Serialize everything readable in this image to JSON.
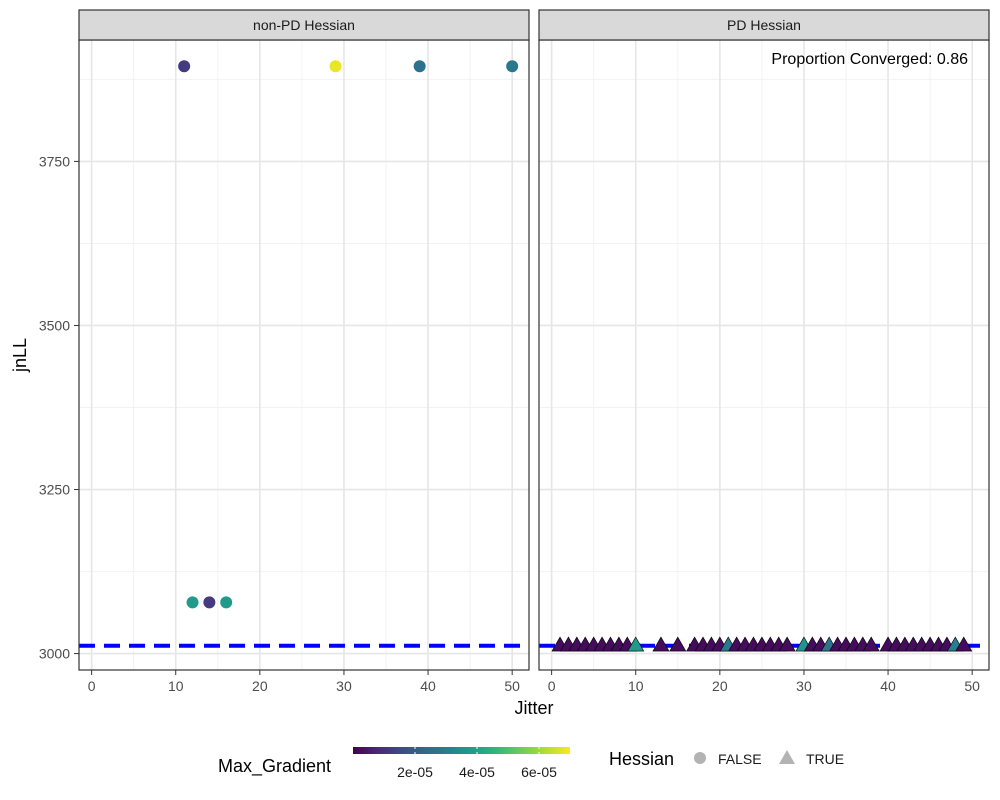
{
  "chart_data": {
    "type": "scatter",
    "xlabel": "Jitter",
    "ylabel": "jnLL",
    "xlim": [
      -1.5,
      52
    ],
    "ylim": [
      2975,
      3935
    ],
    "x_ticks": [
      0,
      10,
      20,
      30,
      40,
      50
    ],
    "y_ticks": [
      3000,
      3250,
      3500,
      3750
    ],
    "grid": true,
    "reference_line": {
      "y": 3012,
      "color": "#0000FF",
      "style": "dashed"
    },
    "panels": [
      {
        "title": "non-PD Hessian",
        "hessian": "FALSE",
        "points": [
          {
            "x": 11,
            "y": 3895,
            "g": 1.2e-05
          },
          {
            "x": 29,
            "y": 3895,
            "g": 6.8e-05
          },
          {
            "x": 39,
            "y": 3895,
            "g": 2.6e-05
          },
          {
            "x": 50,
            "y": 3895,
            "g": 2.8e-05
          },
          {
            "x": 12,
            "y": 3078,
            "g": 3.8e-05
          },
          {
            "x": 14,
            "y": 3078,
            "g": 1.2e-05
          },
          {
            "x": 16,
            "y": 3078,
            "g": 3.8e-05
          }
        ]
      },
      {
        "title": "PD Hessian",
        "hessian": "TRUE",
        "annotation": "Proportion Converged:  0.86",
        "points_y": 3013,
        "points": [
          {
            "x": 1,
            "g": 2e-06
          },
          {
            "x": 2,
            "g": 2e-06
          },
          {
            "x": 3,
            "g": 2e-06
          },
          {
            "x": 4,
            "g": 2e-06
          },
          {
            "x": 5,
            "g": 2e-06
          },
          {
            "x": 6,
            "g": 2e-06
          },
          {
            "x": 7,
            "g": 2e-06
          },
          {
            "x": 8,
            "g": 2e-06
          },
          {
            "x": 9,
            "g": 2e-06
          },
          {
            "x": 10,
            "g": 3.8e-05
          },
          {
            "x": 13,
            "g": 2e-06
          },
          {
            "x": 15,
            "g": 2e-06
          },
          {
            "x": 17,
            "g": 2e-06
          },
          {
            "x": 18,
            "g": 2e-06
          },
          {
            "x": 19,
            "g": 2e-06
          },
          {
            "x": 20,
            "g": 2e-06
          },
          {
            "x": 21,
            "g": 2.8e-05
          },
          {
            "x": 22,
            "g": 2e-06
          },
          {
            "x": 23,
            "g": 2e-06
          },
          {
            "x": 24,
            "g": 2e-06
          },
          {
            "x": 25,
            "g": 2e-06
          },
          {
            "x": 26,
            "g": 2e-06
          },
          {
            "x": 27,
            "g": 2e-06
          },
          {
            "x": 28,
            "g": 2e-06
          },
          {
            "x": 30,
            "g": 3.6e-05
          },
          {
            "x": 31,
            "g": 2e-06
          },
          {
            "x": 32,
            "g": 2e-06
          },
          {
            "x": 33,
            "g": 2.6e-05
          },
          {
            "x": 34,
            "g": 2e-06
          },
          {
            "x": 35,
            "g": 2e-06
          },
          {
            "x": 36,
            "g": 2e-06
          },
          {
            "x": 37,
            "g": 2e-06
          },
          {
            "x": 38,
            "g": 2e-06
          },
          {
            "x": 40,
            "g": 2e-06
          },
          {
            "x": 41,
            "g": 2e-06
          },
          {
            "x": 42,
            "g": 2e-06
          },
          {
            "x": 43,
            "g": 2e-06
          },
          {
            "x": 44,
            "g": 2e-06
          },
          {
            "x": 45,
            "g": 2e-06
          },
          {
            "x": 46,
            "g": 2e-06
          },
          {
            "x": 47,
            "g": 2e-06
          },
          {
            "x": 48,
            "g": 3e-05
          },
          {
            "x": 49,
            "g": 2e-06
          }
        ]
      }
    ],
    "legend": {
      "color": {
        "title": "Max_Gradient",
        "range": [
          0,
          7e-05
        ],
        "ticks": [
          {
            "v": 2e-05,
            "label": "2e-05"
          },
          {
            "v": 4e-05,
            "label": "4e-05"
          },
          {
            "v": 6e-05,
            "label": "6e-05"
          }
        ],
        "palette": [
          "#440154",
          "#482878",
          "#3E4A89",
          "#31688E",
          "#26828E",
          "#1F9E89",
          "#35B779",
          "#6DCD59",
          "#B4DE2C",
          "#FDE725"
        ]
      },
      "shape": {
        "title": "Hessian",
        "items": [
          {
            "label": "FALSE",
            "shape": "circle"
          },
          {
            "label": "TRUE",
            "shape": "triangle"
          }
        ],
        "key_color": "#B3B3B3"
      },
      "placement": "bottom"
    }
  }
}
